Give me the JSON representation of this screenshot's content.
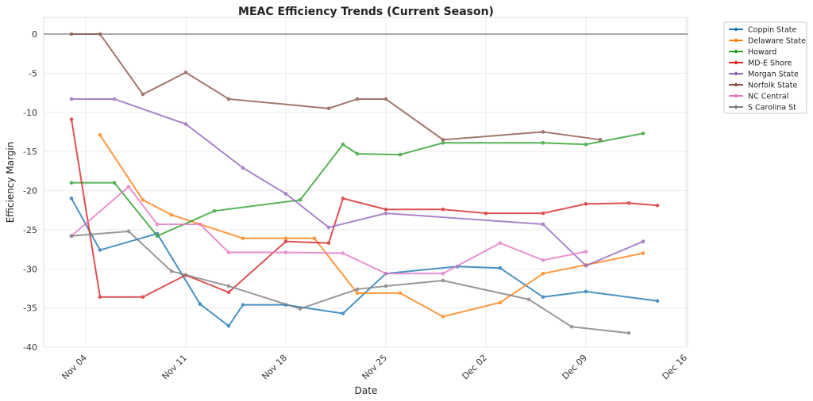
{
  "chart_data": {
    "type": "line",
    "title": "MEAC Efficiency Trends (Current Season)",
    "xlabel": "Date",
    "ylabel": "Efficiency Margin",
    "ylim": [
      -40,
      2
    ],
    "xlim": [
      "Nov 01",
      "Dec 16"
    ],
    "x_ticks": [
      "Nov 04",
      "Nov 11",
      "Nov 18",
      "Nov 25",
      "Dec 02",
      "Dec 09",
      "Dec 16"
    ],
    "y_ticks": [
      0,
      -5,
      -10,
      -15,
      -20,
      -25,
      -30,
      -35,
      -40
    ],
    "grid": true,
    "reference_line_y": 0,
    "legend_position": "outside-top-right",
    "series": [
      {
        "name": "Coppin State",
        "color": "#1f77b4",
        "x": [
          "Nov 03",
          "Nov 05",
          "Nov 09",
          "Nov 12",
          "Nov 14",
          "Nov 15",
          "Nov 18",
          "Nov 22",
          "Nov 25",
          "Nov 30",
          "Dec 03",
          "Dec 06",
          "Dec 09",
          "Dec 14"
        ],
        "y": [
          -21.0,
          -27.6,
          -25.5,
          -34.5,
          -37.3,
          -34.6,
          -34.6,
          -35.7,
          -30.6,
          -29.7,
          -29.9,
          -33.6,
          -32.9,
          -34.1
        ]
      },
      {
        "name": "Delaware State",
        "color": "#ff7f0e",
        "x": [
          "Nov 05",
          "Nov 08",
          "Nov 10",
          "Nov 15",
          "Nov 18",
          "Nov 20",
          "Nov 23",
          "Nov 26",
          "Nov 29",
          "Dec 03",
          "Dec 06",
          "Dec 09",
          "Dec 13"
        ],
        "y": [
          -12.9,
          -21.2,
          -23.1,
          -26.1,
          -26.1,
          -26.1,
          -33.1,
          -33.1,
          -36.1,
          -34.3,
          -30.6,
          -29.5,
          -28.0
        ]
      },
      {
        "name": "Howard",
        "color": "#2ca02c",
        "x": [
          "Nov 03",
          "Nov 06",
          "Nov 09",
          "Nov 13",
          "Nov 19",
          "Nov 22",
          "Nov 23",
          "Nov 26",
          "Nov 29",
          "Dec 06",
          "Dec 09",
          "Dec 13"
        ],
        "y": [
          -19.0,
          -19.0,
          -25.8,
          -22.6,
          -21.2,
          -14.1,
          -15.3,
          -15.4,
          -13.9,
          -13.9,
          -14.1,
          -12.7
        ]
      },
      {
        "name": "MD-E Shore",
        "color": "#d62728",
        "x": [
          "Nov 03",
          "Nov 05",
          "Nov 08",
          "Nov 11",
          "Nov 14",
          "Nov 18",
          "Nov 21",
          "Nov 22",
          "Nov 25",
          "Nov 29",
          "Dec 02",
          "Dec 06",
          "Dec 09",
          "Dec 12",
          "Dec 14"
        ],
        "y": [
          -10.9,
          -33.6,
          -33.6,
          -30.8,
          -33.0,
          -26.5,
          -26.7,
          -21.0,
          -22.4,
          -22.4,
          -22.9,
          -22.9,
          -21.7,
          -21.6,
          -21.9
        ]
      },
      {
        "name": "Morgan State",
        "color": "#9467bd",
        "x": [
          "Nov 03",
          "Nov 06",
          "Nov 11",
          "Nov 15",
          "Nov 18",
          "Nov 21",
          "Nov 25",
          "Dec 06",
          "Dec 09",
          "Dec 13"
        ],
        "y": [
          -8.3,
          -8.3,
          -11.5,
          -17.1,
          -20.4,
          -24.7,
          -22.9,
          -24.3,
          -29.6,
          -26.5
        ]
      },
      {
        "name": "Norfolk State",
        "color": "#8c564b",
        "x": [
          "Nov 03",
          "Nov 05",
          "Nov 08",
          "Nov 11",
          "Nov 14",
          "Nov 21",
          "Nov 23",
          "Nov 25",
          "Nov 29",
          "Dec 06",
          "Dec 10"
        ],
        "y": [
          0.0,
          0.0,
          -7.7,
          -4.9,
          -8.3,
          -9.5,
          -8.3,
          -8.3,
          -13.5,
          -12.5,
          -13.5
        ]
      },
      {
        "name": "NC Central",
        "color": "#e377c2",
        "x": [
          "Nov 03",
          "Nov 07",
          "Nov 09",
          "Nov 12",
          "Nov 14",
          "Nov 18",
          "Nov 22",
          "Nov 25",
          "Nov 29",
          "Dec 03",
          "Dec 06",
          "Dec 09"
        ],
        "y": [
          -25.8,
          -19.5,
          -24.3,
          -24.3,
          -27.9,
          -27.9,
          -28.0,
          -30.6,
          -30.6,
          -26.7,
          -28.9,
          -27.8
        ]
      },
      {
        "name": "S Carolina St",
        "color": "#7f7f7f",
        "x": [
          "Nov 03",
          "Nov 07",
          "Nov 10",
          "Nov 14",
          "Nov 19",
          "Nov 23",
          "Nov 25",
          "Nov 29",
          "Dec 05",
          "Dec 08",
          "Dec 12"
        ],
        "y": [
          -25.8,
          -25.2,
          -30.3,
          -32.2,
          -35.1,
          -32.6,
          -32.2,
          -31.5,
          -33.9,
          -37.4,
          -38.2
        ]
      }
    ]
  }
}
